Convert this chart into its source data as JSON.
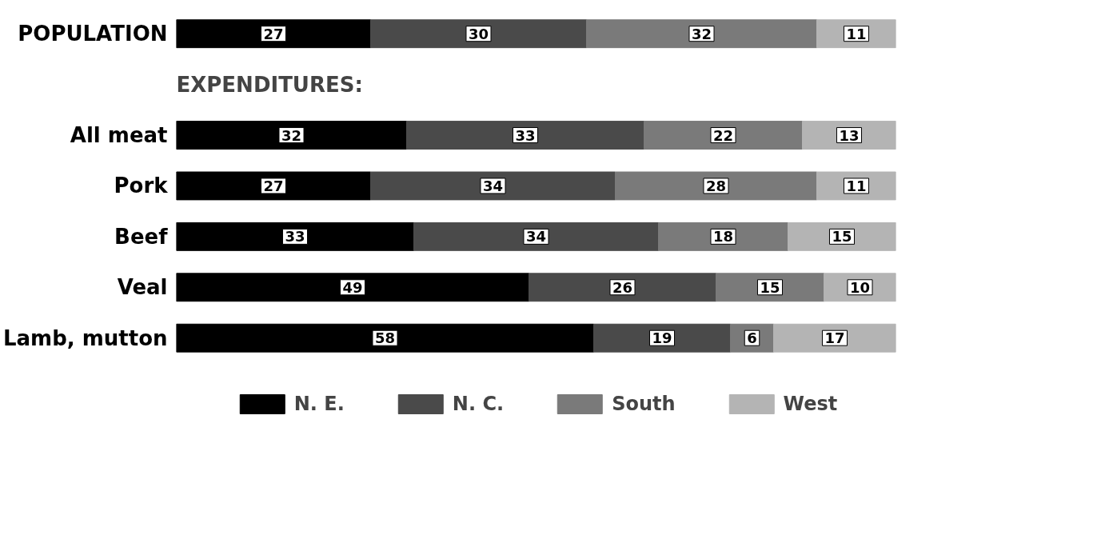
{
  "chart_data": {
    "type": "bar",
    "orientation": "horizontal",
    "stacked": true,
    "categories": [
      "POPULATION",
      null,
      "All meat",
      "Pork",
      "Beef",
      "Veal",
      "Lamb, mutton"
    ],
    "series": [
      {
        "name": "N. E.",
        "color": "#000000",
        "values": [
          27,
          null,
          32,
          27,
          33,
          49,
          58
        ]
      },
      {
        "name": "N. C.",
        "color": "#4a4a4a",
        "values": [
          30,
          null,
          33,
          34,
          34,
          26,
          19
        ]
      },
      {
        "name": "South",
        "color": "#7a7a7a",
        "values": [
          32,
          null,
          22,
          28,
          18,
          15,
          6
        ]
      },
      {
        "name": "West",
        "color": "#b4b4b4",
        "values": [
          11,
          null,
          13,
          11,
          15,
          10,
          17
        ]
      }
    ],
    "annotations": [
      "EXPENDITURES:"
    ],
    "data_labels": true,
    "legend": "bottom",
    "grid": false,
    "tick_labels": "y"
  }
}
